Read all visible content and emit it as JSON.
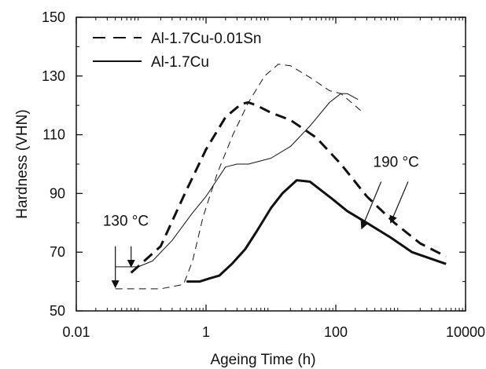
{
  "chart_data": {
    "type": "line",
    "xlabel": "Ageing Time (h)",
    "ylabel": "Hardness (VHN)",
    "xscale": "log",
    "xlim": [
      0.01,
      10000
    ],
    "ylim": [
      50,
      150
    ],
    "xticks": [
      0.01,
      1,
      100,
      10000
    ],
    "xtick_labels": [
      "0.01",
      "1",
      "100",
      "10000"
    ],
    "yticks": [
      50,
      70,
      90,
      110,
      130,
      150
    ],
    "ytick_labels": [
      "50",
      "70",
      "90",
      "110",
      "130",
      "150"
    ],
    "grid": false,
    "legend_position": "top-left",
    "legend": [
      {
        "label": "Al-1.7Cu-0.01Sn",
        "style": "dashed"
      },
      {
        "label": "Al-1.7Cu",
        "style": "solid"
      }
    ],
    "series": [
      {
        "name": "Al-1.7Cu-0.01Sn",
        "condition": "130 °C",
        "style": "dashed",
        "weight": "thin",
        "points": [
          [
            0.04,
            57.5
          ],
          [
            0.2,
            57.5
          ],
          [
            0.45,
            59
          ],
          [
            0.62,
            67
          ],
          [
            0.9,
            82
          ],
          [
            1.5,
            97
          ],
          [
            2.6,
            110
          ],
          [
            4.5,
            121
          ],
          [
            8,
            130
          ],
          [
            13,
            134
          ],
          [
            20,
            133.5
          ],
          [
            40,
            129.5
          ],
          [
            80,
            125
          ],
          [
            120,
            124
          ],
          [
            250,
            118
          ]
        ]
      },
      {
        "name": "Al-1.7Cu-0.01Sn",
        "condition": "190 °C",
        "style": "dashed",
        "weight": "thick",
        "points": [
          [
            0.07,
            63
          ],
          [
            0.2,
            72
          ],
          [
            0.45,
            89
          ],
          [
            1,
            105
          ],
          [
            2,
            116
          ],
          [
            3.5,
            120.5
          ],
          [
            4.5,
            121
          ],
          [
            6,
            120
          ],
          [
            10,
            117.5
          ],
          [
            20,
            115
          ],
          [
            50,
            109
          ],
          [
            120,
            100
          ],
          [
            300,
            89
          ],
          [
            800,
            80
          ],
          [
            2000,
            73
          ],
          [
            5000,
            68.5
          ]
        ]
      },
      {
        "name": "Al-1.7Cu",
        "condition": "130 °C",
        "style": "solid",
        "weight": "thin",
        "points": [
          [
            0.04,
            65
          ],
          [
            0.09,
            65
          ],
          [
            0.15,
            67
          ],
          [
            0.3,
            74
          ],
          [
            0.6,
            83
          ],
          [
            1,
            89
          ],
          [
            2,
            99
          ],
          [
            3,
            100
          ],
          [
            4.5,
            100
          ],
          [
            10,
            102
          ],
          [
            20,
            106
          ],
          [
            40,
            113
          ],
          [
            80,
            121
          ],
          [
            120,
            124
          ],
          [
            150,
            124
          ],
          [
            220,
            122
          ]
        ]
      },
      {
        "name": "Al-1.7Cu",
        "condition": "190 °C",
        "style": "solid",
        "weight": "thick",
        "points": [
          [
            0.5,
            60
          ],
          [
            0.8,
            60
          ],
          [
            1.1,
            61
          ],
          [
            1.6,
            62
          ],
          [
            2.5,
            66
          ],
          [
            4,
            71
          ],
          [
            6,
            77
          ],
          [
            10,
            85
          ],
          [
            15,
            90
          ],
          [
            25,
            94.5
          ],
          [
            40,
            94
          ],
          [
            60,
            91
          ],
          [
            90,
            88
          ],
          [
            150,
            84
          ],
          [
            300,
            80
          ],
          [
            700,
            75
          ],
          [
            1500,
            70
          ],
          [
            5000,
            66
          ]
        ]
      }
    ],
    "annotations": [
      {
        "text": "130 °C",
        "label_at": [
          0.058,
          79
        ],
        "arrows": [
          {
            "from": [
              0.04,
              72
            ],
            "to": [
              0.04,
              58
            ]
          },
          {
            "from": [
              0.07,
              72
            ],
            "to": [
              0.07,
              65
            ]
          }
        ]
      },
      {
        "text": "190 °C",
        "label_at": [
          850,
          99
        ],
        "arrows": [
          {
            "from": [
              500,
              94
            ],
            "to": [
              250,
              78
            ]
          },
          {
            "from": [
              1300,
              94
            ],
            "to": [
              700,
              80
            ]
          }
        ]
      }
    ]
  }
}
